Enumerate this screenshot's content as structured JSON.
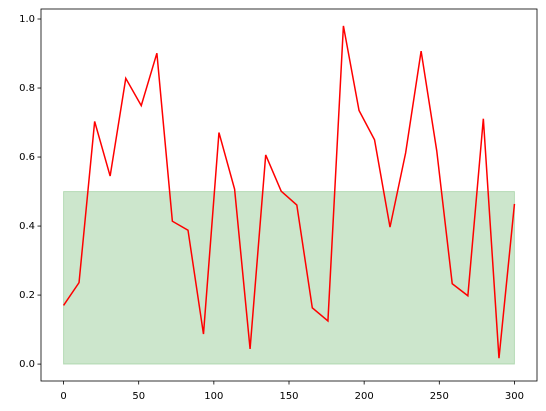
{
  "chart_data": {
    "type": "line",
    "x": [
      0,
      10.3,
      20.7,
      31.0,
      41.4,
      51.7,
      62.1,
      72.4,
      82.8,
      93.1,
      103.4,
      113.8,
      124.1,
      134.5,
      144.8,
      155.2,
      165.5,
      175.9,
      186.2,
      196.6,
      206.9,
      217.2,
      227.6,
      237.9,
      248.3,
      258.6,
      269.0,
      279.3,
      289.7,
      300
    ],
    "series": [
      {
        "color": "#ff0000",
        "values": [
          0.17,
          0.236,
          0.703,
          0.545,
          0.828,
          0.749,
          0.901,
          0.414,
          0.388,
          0.087,
          0.671,
          0.507,
          0.044,
          0.606,
          0.501,
          0.461,
          0.163,
          0.125,
          0.98,
          0.735,
          0.65,
          0.397,
          0.612,
          0.907,
          0.618,
          0.233,
          0.198,
          0.711,
          0.017,
          0.464
        ]
      }
    ],
    "band": {
      "x": [
        0,
        300
      ],
      "y": [
        0,
        0.5
      ],
      "color": "#008000"
    },
    "xlim": [
      -15,
      315
    ],
    "ylim": [
      -0.049,
      1.029
    ],
    "xticks": [
      0,
      50,
      100,
      150,
      200,
      250,
      300
    ],
    "yticks": [
      {
        "value": 0,
        "label": "0.0"
      },
      0.2,
      0.4,
      0.6,
      0.8,
      {
        "value": 1,
        "label": "1.0"
      }
    ],
    "grid": false
  }
}
